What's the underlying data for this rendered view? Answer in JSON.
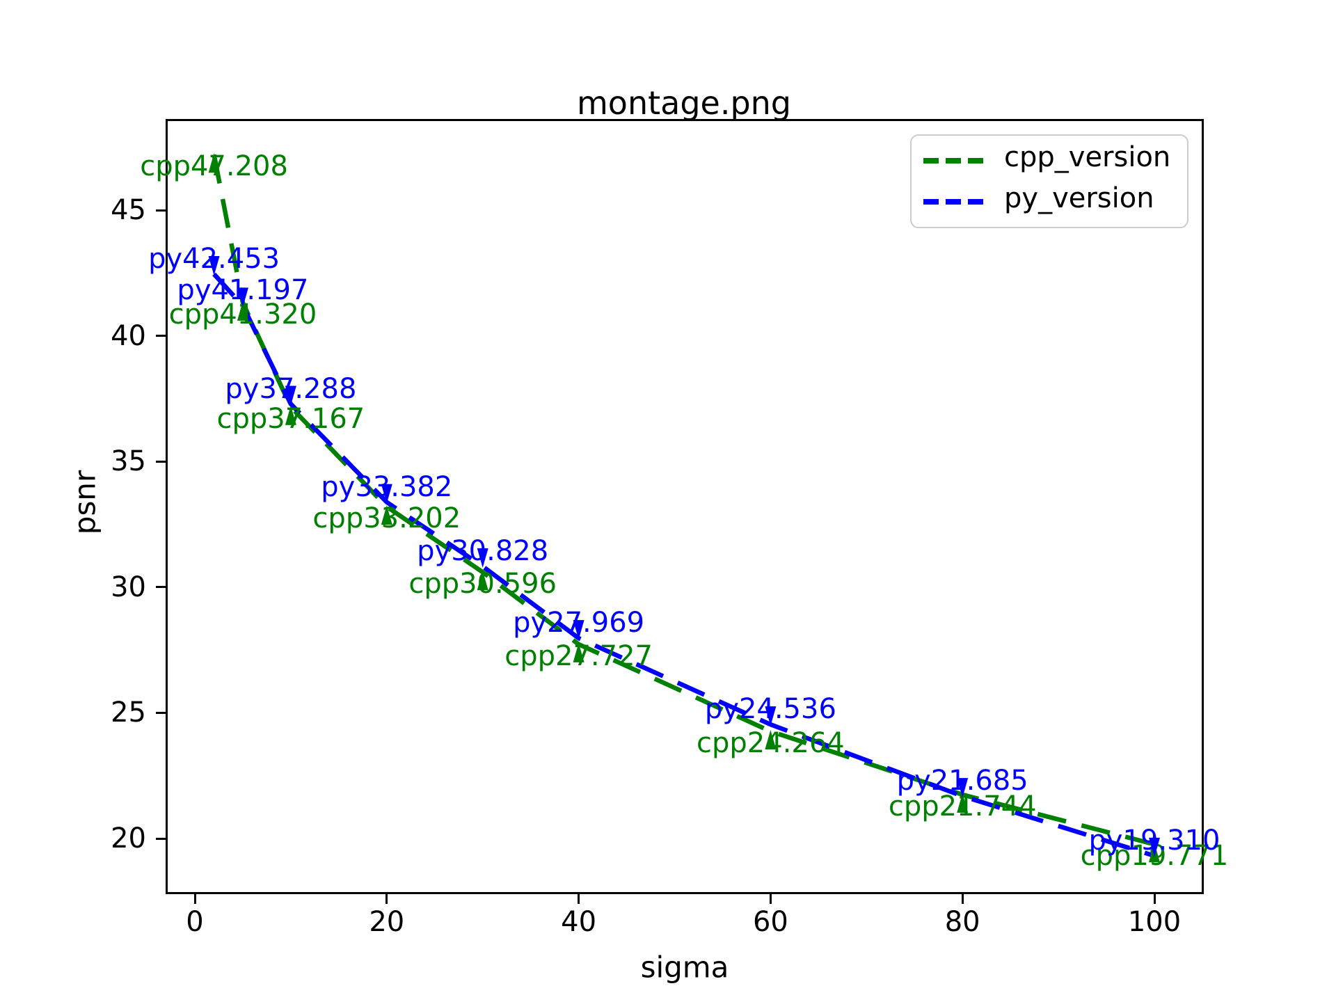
{
  "title": "montage.png",
  "axes": {
    "xlabel": "sigma",
    "ylabel": "psnr",
    "xticks": [
      0,
      20,
      40,
      60,
      80,
      100
    ],
    "yticks": [
      45,
      40,
      35,
      30,
      25,
      20
    ]
  },
  "legend": {
    "position": "upper right",
    "items": [
      {
        "label": "cpp_version",
        "color": "#008000"
      },
      {
        "label": "py_version",
        "color": "#0000ff"
      }
    ]
  },
  "chart_data": {
    "type": "line",
    "title": "montage.png",
    "xlabel": "sigma",
    "ylabel": "psnr",
    "xlim": [
      -2.9,
      104.9
    ],
    "ylim": [
      17.9,
      48.6
    ],
    "grid": false,
    "linestyle": "dashed",
    "legend_position": "upper right",
    "x": [
      2,
      5,
      10,
      20,
      30,
      40,
      60,
      80,
      100
    ],
    "series": [
      {
        "name": "cpp_version",
        "color": "#008000",
        "values": [
          47.208,
          41.32,
          37.167,
          33.202,
          30.596,
          27.727,
          24.264,
          21.744,
          19.771
        ]
      },
      {
        "name": "py_version",
        "color": "#0000ff",
        "values": [
          42.453,
          41.197,
          37.288,
          33.382,
          30.828,
          27.969,
          24.536,
          21.685,
          19.31
        ]
      }
    ],
    "annotations": [
      {
        "label": "cpp47.208",
        "series": "cpp_version",
        "sigma": 2,
        "psnr": 47.208
      },
      {
        "label": "cpp41.320",
        "series": "cpp_version",
        "sigma": 5,
        "psnr": 41.32
      },
      {
        "label": "cpp37.167",
        "series": "cpp_version",
        "sigma": 10,
        "psnr": 37.167
      },
      {
        "label": "cpp33.202",
        "series": "cpp_version",
        "sigma": 20,
        "psnr": 33.202
      },
      {
        "label": "cpp30.596",
        "series": "cpp_version",
        "sigma": 30,
        "psnr": 30.596
      },
      {
        "label": "cpp27.727",
        "series": "cpp_version",
        "sigma": 40,
        "psnr": 27.727
      },
      {
        "label": "cpp24.264",
        "series": "cpp_version",
        "sigma": 60,
        "psnr": 24.264
      },
      {
        "label": "cpp21.744",
        "series": "cpp_version",
        "sigma": 80,
        "psnr": 21.744
      },
      {
        "label": "cpp19.771",
        "series": "cpp_version",
        "sigma": 100,
        "psnr": 19.771
      },
      {
        "label": "py42.453",
        "series": "py_version",
        "sigma": 2,
        "psnr": 42.453
      },
      {
        "label": "py41.197",
        "series": "py_version",
        "sigma": 5,
        "psnr": 41.197
      },
      {
        "label": "py37.288",
        "series": "py_version",
        "sigma": 10,
        "psnr": 37.288
      },
      {
        "label": "py33.382",
        "series": "py_version",
        "sigma": 20,
        "psnr": 33.382
      },
      {
        "label": "py30.828",
        "series": "py_version",
        "sigma": 30,
        "psnr": 30.828
      },
      {
        "label": "py27.969",
        "series": "py_version",
        "sigma": 40,
        "psnr": 27.969
      },
      {
        "label": "py24.536",
        "series": "py_version",
        "sigma": 60,
        "psnr": 24.536
      },
      {
        "label": "py21.685",
        "series": "py_version",
        "sigma": 80,
        "psnr": 21.685
      },
      {
        "label": "py19.310",
        "series": "py_version",
        "sigma": 100,
        "psnr": 19.31
      }
    ]
  }
}
